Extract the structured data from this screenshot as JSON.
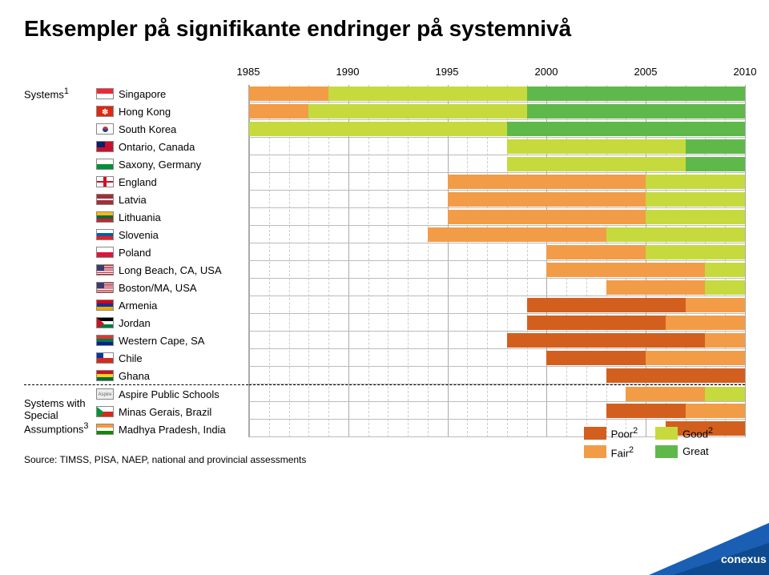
{
  "title": "Eksempler på signifikante endringer på systemnivå",
  "group1_label": "Systems",
  "group1_sup": "1",
  "group2_label_l1": "Systems with",
  "group2_label_l2": "Special",
  "group2_label_l3": "Assumptions",
  "group2_sup": "3",
  "years": [
    "1985",
    "1990",
    "1995",
    "2000",
    "2005",
    "2010"
  ],
  "year_positions_pct": [
    0,
    20,
    40,
    60,
    80,
    100
  ],
  "tick_count": 26,
  "major_every": 5,
  "colors": {
    "poor": "#d35f1e",
    "fair": "#f39c47",
    "good": "#c6da3e",
    "great": "#5fb94a",
    "grid": "#cccccc",
    "axis": "#aaaaaa",
    "bg": "#ffffff",
    "logo": "#1a5fb4"
  },
  "legend": {
    "poor": "Poor",
    "fair": "Fair",
    "good": "Good",
    "great": "Great",
    "sup": "2"
  },
  "rows": [
    {
      "name": "Singapore",
      "flag": "sg",
      "segments": [
        {
          "start": 0,
          "end": 16,
          "c": "fair"
        },
        {
          "start": 16,
          "end": 56,
          "c": "good"
        },
        {
          "start": 56,
          "end": 100,
          "c": "great"
        }
      ]
    },
    {
      "name": "Hong Kong",
      "flag": "hk",
      "segments": [
        {
          "start": 0,
          "end": 12,
          "c": "fair"
        },
        {
          "start": 12,
          "end": 56,
          "c": "good"
        },
        {
          "start": 56,
          "end": 100,
          "c": "great"
        }
      ]
    },
    {
      "name": "South Korea",
      "flag": "kr",
      "segments": [
        {
          "start": 0,
          "end": 52,
          "c": "good"
        },
        {
          "start": 52,
          "end": 100,
          "c": "great"
        }
      ]
    },
    {
      "name": "Ontario, Canada",
      "flag": "on",
      "segments": [
        {
          "start": 52,
          "end": 88,
          "c": "good"
        },
        {
          "start": 88,
          "end": 100,
          "c": "great"
        }
      ]
    },
    {
      "name": "Saxony, Germany",
      "flag": "sx",
      "segments": [
        {
          "start": 52,
          "end": 88,
          "c": "good"
        },
        {
          "start": 88,
          "end": 100,
          "c": "great"
        }
      ]
    },
    {
      "name": "England",
      "flag": "en",
      "segments": [
        {
          "start": 40,
          "end": 80,
          "c": "fair"
        },
        {
          "start": 80,
          "end": 100,
          "c": "good"
        }
      ]
    },
    {
      "name": "Latvia",
      "flag": "lv",
      "segments": [
        {
          "start": 40,
          "end": 80,
          "c": "fair"
        },
        {
          "start": 80,
          "end": 100,
          "c": "good"
        }
      ]
    },
    {
      "name": "Lithuania",
      "flag": "lt",
      "segments": [
        {
          "start": 40,
          "end": 80,
          "c": "fair"
        },
        {
          "start": 80,
          "end": 100,
          "c": "good"
        }
      ]
    },
    {
      "name": "Slovenia",
      "flag": "si",
      "segments": [
        {
          "start": 36,
          "end": 72,
          "c": "fair"
        },
        {
          "start": 72,
          "end": 100,
          "c": "good"
        }
      ]
    },
    {
      "name": "Poland",
      "flag": "pl",
      "segments": [
        {
          "start": 60,
          "end": 80,
          "c": "fair"
        },
        {
          "start": 80,
          "end": 100,
          "c": "good"
        }
      ]
    },
    {
      "name": "Long Beach, CA, USA",
      "flag": "us",
      "segments": [
        {
          "start": 60,
          "end": 92,
          "c": "fair"
        },
        {
          "start": 92,
          "end": 100,
          "c": "good"
        }
      ]
    },
    {
      "name": "Boston/MA, USA",
      "flag": "us",
      "segments": [
        {
          "start": 72,
          "end": 92,
          "c": "fair"
        },
        {
          "start": 92,
          "end": 100,
          "c": "good"
        }
      ]
    },
    {
      "name": "Armenia",
      "flag": "am",
      "segments": [
        {
          "start": 56,
          "end": 88,
          "c": "poor"
        },
        {
          "start": 88,
          "end": 100,
          "c": "fair"
        }
      ]
    },
    {
      "name": "Jordan",
      "flag": "jo",
      "segments": [
        {
          "start": 56,
          "end": 84,
          "c": "poor"
        },
        {
          "start": 84,
          "end": 100,
          "c": "fair"
        }
      ]
    },
    {
      "name": "Western Cape, SA",
      "flag": "za",
      "segments": [
        {
          "start": 52,
          "end": 92,
          "c": "poor"
        },
        {
          "start": 92,
          "end": 100,
          "c": "fair"
        }
      ]
    },
    {
      "name": "Chile",
      "flag": "cl",
      "segments": [
        {
          "start": 60,
          "end": 80,
          "c": "poor"
        },
        {
          "start": 80,
          "end": 100,
          "c": "fair"
        }
      ]
    },
    {
      "name": "Ghana",
      "flag": "gh",
      "segments": [
        {
          "start": 72,
          "end": 100,
          "c": "poor"
        }
      ]
    },
    {
      "name": "Aspire Public Schools",
      "flag": "asp",
      "segments": [
        {
          "start": 76,
          "end": 92,
          "c": "fair"
        },
        {
          "start": 92,
          "end": 100,
          "c": "good"
        }
      ],
      "divider": true
    },
    {
      "name": "Minas Gerais, Brazil",
      "flag": "mg",
      "segments": [
        {
          "start": 72,
          "end": 88,
          "c": "poor"
        },
        {
          "start": 88,
          "end": 100,
          "c": "fair"
        }
      ]
    },
    {
      "name": "Madhya Pradesh, India",
      "flag": "in",
      "segments": [
        {
          "start": 84,
          "end": 100,
          "c": "poor"
        }
      ]
    }
  ],
  "source": "Source: TIMSS, PISA, NAEP, national and provincial assessments",
  "logo_text": "conexus"
}
